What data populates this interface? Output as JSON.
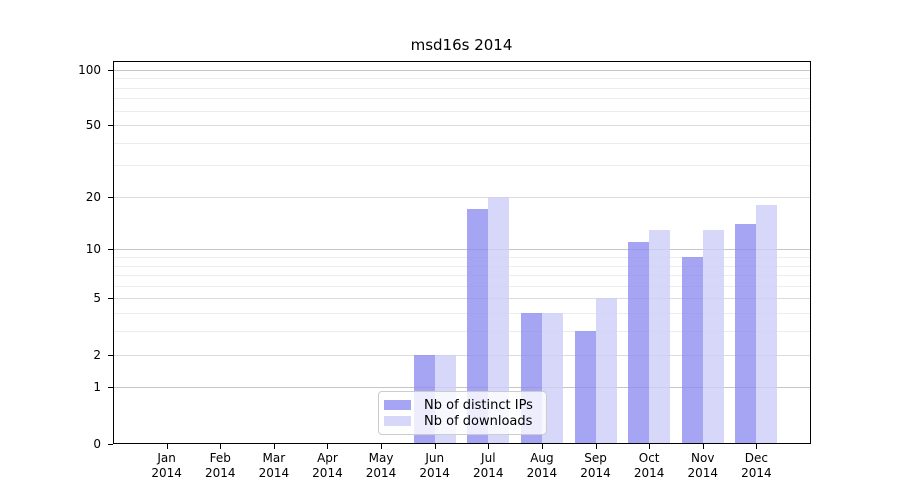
{
  "chart_data": {
    "type": "bar",
    "title": "msd16s 2014",
    "categories": [
      "Jan",
      "Feb",
      "Mar",
      "Apr",
      "May",
      "Jun",
      "Jul",
      "Aug",
      "Sep",
      "Oct",
      "Nov",
      "Dec"
    ],
    "x_year_label": "2014",
    "series": [
      {
        "name": "Nb of distinct IPs",
        "color_hex": "#8c8cf0",
        "fill_alpha": 0.78,
        "values": [
          0,
          0,
          0,
          0,
          0,
          2,
          17,
          4,
          3,
          11,
          9,
          14
        ]
      },
      {
        "name": "Nb of downloads",
        "color_hex": "#cdcdf8",
        "fill_alpha": 0.8,
        "values": [
          0,
          0,
          0,
          0,
          0,
          2,
          20,
          4,
          5,
          13,
          13,
          18
        ]
      }
    ],
    "y_scale": "log1p",
    "y_tick_values": [
      0,
      1,
      2,
      5,
      10,
      20,
      50,
      100
    ],
    "y_tick_labels": [
      "0",
      "1",
      "2",
      "5",
      "10",
      "20",
      "50",
      "100"
    ],
    "y_minor_gridline_values": [
      3,
      4,
      6,
      7,
      8,
      9,
      30,
      40,
      60,
      70,
      80,
      90
    ],
    "ylim": [
      0,
      112
    ],
    "grid": true,
    "legend_position": "lower center"
  },
  "colors": {
    "background": "#ffffff",
    "axis": "#000000",
    "text": "#000000",
    "grid_major_pow10": "#c6c6c6",
    "grid_major_other": "#dcdcdc",
    "grid_minor": "#ededed",
    "legend_border": "#cccccc",
    "legend_background": "rgba(255,255,255,0.8)"
  }
}
